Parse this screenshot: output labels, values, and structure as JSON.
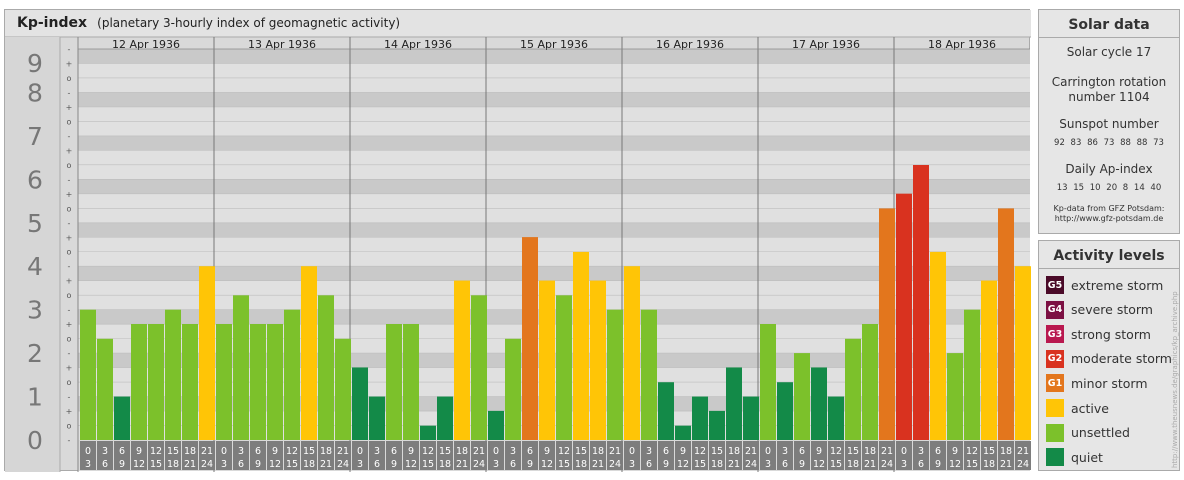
{
  "header": {
    "title": "Kp-index",
    "subtitle": "(planetary 3-hourly index of geomagnetic activity)"
  },
  "chart_data": {
    "type": "bar",
    "title": "Kp-index",
    "subtitle": "(planetary 3-hourly index of geomagnetic activity)",
    "y_ticks": [
      "0",
      "1",
      "2",
      "3",
      "4",
      "5",
      "6",
      "7",
      "8",
      "9"
    ],
    "minor_tick_labels": [
      "-",
      "o",
      "+"
    ],
    "ylim": [
      0,
      9
    ],
    "days": [
      "12 Apr 1936",
      "13 Apr 1936",
      "14 Apr 1936",
      "15 Apr 1936",
      "16 Apr 1936",
      "17 Apr 1936",
      "18 Apr 1936"
    ],
    "hour_ranges": [
      [
        "0",
        "3"
      ],
      [
        "3",
        "6"
      ],
      [
        "6",
        "9"
      ],
      [
        "9",
        "12"
      ],
      [
        "12",
        "15"
      ],
      [
        "15",
        "18"
      ],
      [
        "18",
        "21"
      ],
      [
        "21",
        "24"
      ]
    ],
    "values": [
      [
        3.0,
        2.33,
        1.0,
        2.67,
        2.67,
        3.0,
        2.67,
        4.0
      ],
      [
        2.67,
        3.33,
        2.67,
        2.67,
        3.0,
        4.0,
        3.33,
        2.33
      ],
      [
        1.67,
        1.0,
        2.67,
        2.67,
        0.33,
        1.0,
        3.67,
        3.33
      ],
      [
        0.67,
        2.33,
        4.67,
        3.67,
        3.33,
        4.33,
        3.67,
        3.0
      ],
      [
        4.0,
        3.0,
        1.33,
        0.33,
        1.0,
        0.67,
        1.67,
        1.0
      ],
      [
        2.67,
        1.33,
        2.0,
        1.67,
        1.0,
        2.33,
        2.67,
        5.33
      ],
      [
        5.67,
        6.33,
        4.33,
        2.0,
        3.0,
        3.67,
        5.33,
        4.0
      ]
    ],
    "level_colors": {
      "quiet": "#138a48",
      "unsettled": "#7cc12b",
      "active": "#ffc506",
      "minor_storm": "#e3761d",
      "moderate_storm": "#d9321f",
      "strong_storm": "#b9184f",
      "severe_storm": "#7c1043",
      "extreme_storm": "#4a0a28"
    },
    "grid": true,
    "legend": "right"
  },
  "solar": {
    "title": "Solar data",
    "cycle": "Solar cycle 17",
    "carrington_line1": "Carrington rotation",
    "carrington_line2": "number 1104",
    "sunspot_title": "Sunspot number",
    "sunspot_values": "92 83 86 73 88 88 73",
    "ap_title": "Daily Ap-index",
    "ap_values": "13 15 10 20 8 14 40",
    "source_line1": "Kp-data from GFZ Potsdam:",
    "source_line2": "http://www.gfz-potsdam.de"
  },
  "activity": {
    "title": "Activity levels",
    "levels": [
      {
        "code": "G5",
        "label": "extreme storm",
        "color": "#4a0a28"
      },
      {
        "code": "G4",
        "label": "severe storm",
        "color": "#7c1043"
      },
      {
        "code": "G3",
        "label": "strong storm",
        "color": "#b9184f"
      },
      {
        "code": "G2",
        "label": "moderate storm",
        "color": "#d9321f"
      },
      {
        "code": "G1",
        "label": "minor storm",
        "color": "#e3761d"
      },
      {
        "code": "",
        "label": "active",
        "color": "#ffc506"
      },
      {
        "code": "",
        "label": "unsettled",
        "color": "#7cc12b"
      },
      {
        "code": "",
        "label": "quiet",
        "color": "#138a48"
      }
    ]
  },
  "credit": "http://www.theusnews.de/graphics/kp_archive.php"
}
